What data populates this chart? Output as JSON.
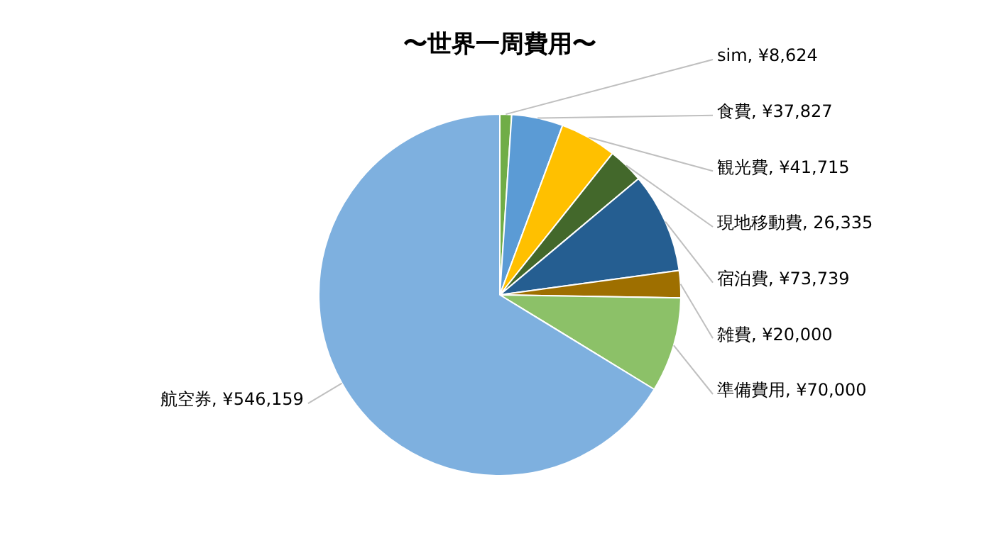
{
  "chart_data": {
    "type": "pie",
    "title": "〜世界一周費用〜",
    "categories": [
      "sim",
      "食費",
      "観光費",
      "現地移動費",
      "宿泊費",
      "雑費",
      "準備費用",
      "航空券"
    ],
    "values": [
      8624,
      37827,
      41715,
      26335,
      73739,
      20000,
      70000,
      546159
    ],
    "value_labels": [
      "¥8,624",
      "¥37,827",
      "¥41,715",
      "26,335",
      "¥73,739",
      "¥20,000",
      "¥70,000",
      "¥546,159"
    ],
    "colors": [
      "#70ad47",
      "#5b9bd5",
      "#ffc000",
      "#43682b",
      "#255e91",
      "#9e6f00",
      "#8cc168",
      "#7eb0df"
    ],
    "legend": false
  }
}
